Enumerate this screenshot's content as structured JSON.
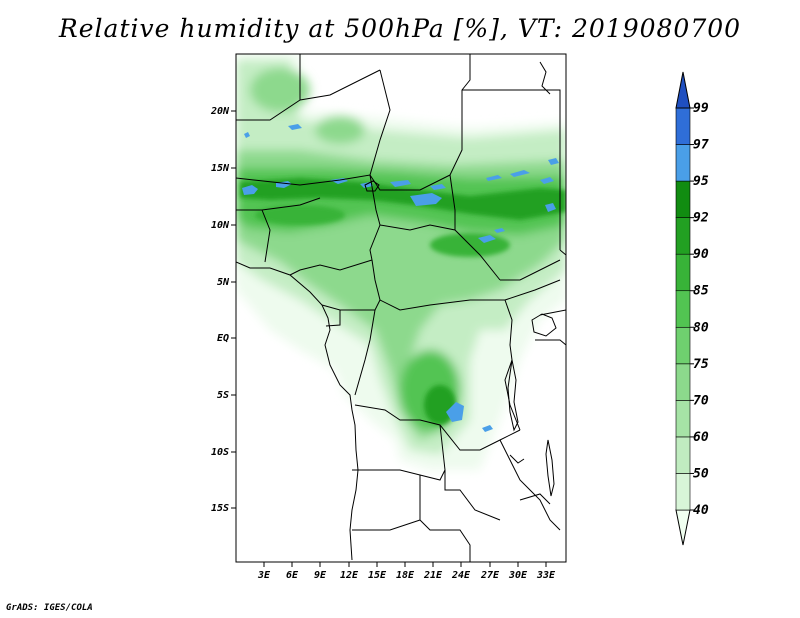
{
  "title": "Relative humidity at 500hPa [%], VT: 2019080700",
  "credit": "GrADS: IGES/COLA",
  "map": {
    "lat_labels": [
      "20N",
      "15N",
      "10N",
      "5N",
      "EQ",
      "5S",
      "10S",
      "15S"
    ],
    "lon_labels": [
      "3E",
      "6E",
      "9E",
      "12E",
      "15E",
      "18E",
      "21E",
      "24E",
      "27E",
      "30E",
      "33E"
    ]
  },
  "colorbar": {
    "levels": [
      "40",
      "50",
      "60",
      "70",
      "75",
      "80",
      "85",
      "90",
      "92",
      "95",
      "97",
      "99"
    ],
    "colors": [
      "#f0fff0",
      "#d8f5d8",
      "#c0ecc0",
      "#a6e3a6",
      "#8cd98c",
      "#6fd06f",
      "#52c452",
      "#38b338",
      "#22a022",
      "#118c11",
      "#4a9fe8",
      "#2f6ed8",
      "#1f4fc0"
    ]
  }
}
